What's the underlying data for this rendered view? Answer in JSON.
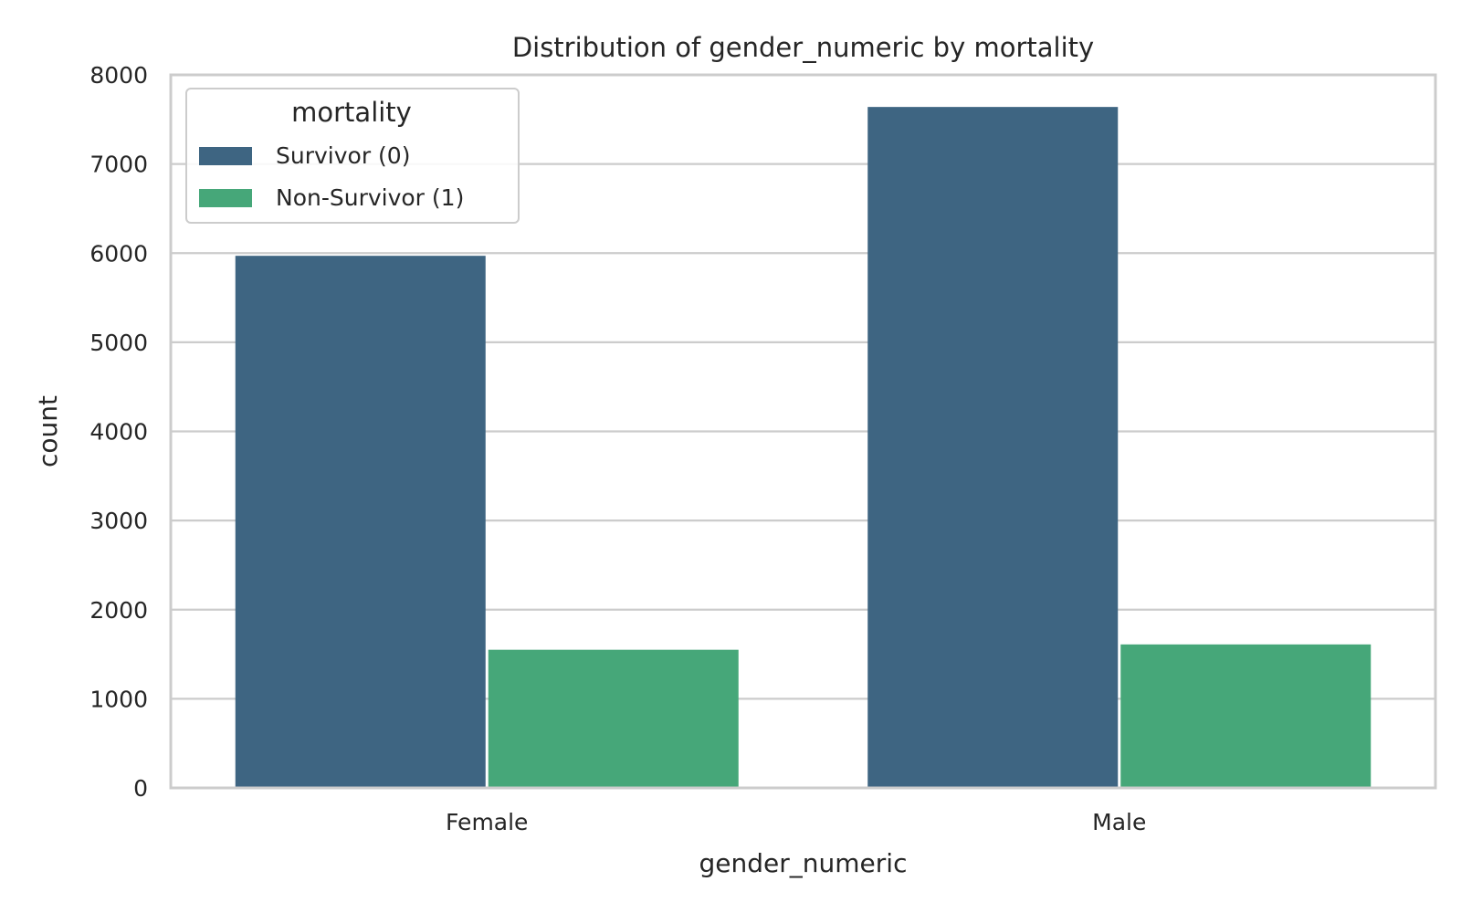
{
  "chart_data": {
    "type": "bar",
    "title": "Distribution of gender_numeric by mortality",
    "xlabel": "gender_numeric",
    "ylabel": "count",
    "categories": [
      "Female",
      "Male"
    ],
    "series": [
      {
        "name": "Survivor (0)",
        "values": [
          5970,
          7640
        ],
        "color": "#3e6582"
      },
      {
        "name": "Non-Survivor (1)",
        "values": [
          1550,
          1610
        ],
        "color": "#46a779"
      }
    ],
    "ylim": [
      0,
      8000
    ],
    "yticks": [
      0,
      1000,
      2000,
      3000,
      4000,
      5000,
      6000,
      7000,
      8000
    ],
    "grid": true,
    "legend": {
      "title": "mortality",
      "placement": "top-left"
    },
    "colors": {
      "grid": "#cccccc",
      "axis": "#cccccc",
      "text": "#262626"
    }
  }
}
